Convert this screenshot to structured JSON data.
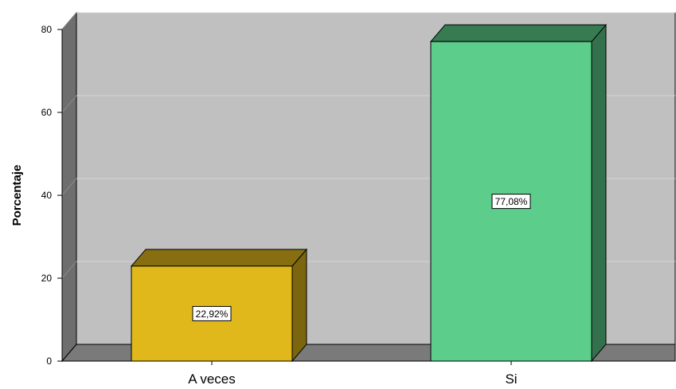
{
  "chart_data": {
    "type": "bar",
    "categories": [
      "A veces",
      "Si"
    ],
    "values": [
      22.92,
      77.08
    ],
    "data_labels": [
      "22,92%",
      "77,08%"
    ],
    "ylabel": "Porcentaje",
    "xlabel": "",
    "ylim": [
      0,
      80
    ],
    "yticks": [
      "0",
      "20",
      "40",
      "60",
      "80"
    ],
    "grid": true,
    "colors": {
      "A veces": "#e0b81c",
      "Si": "#5ccd8b",
      "wall": "#c0c0c0",
      "side_wall": "#6e6e6e",
      "floor": "#7a7a7a"
    }
  }
}
